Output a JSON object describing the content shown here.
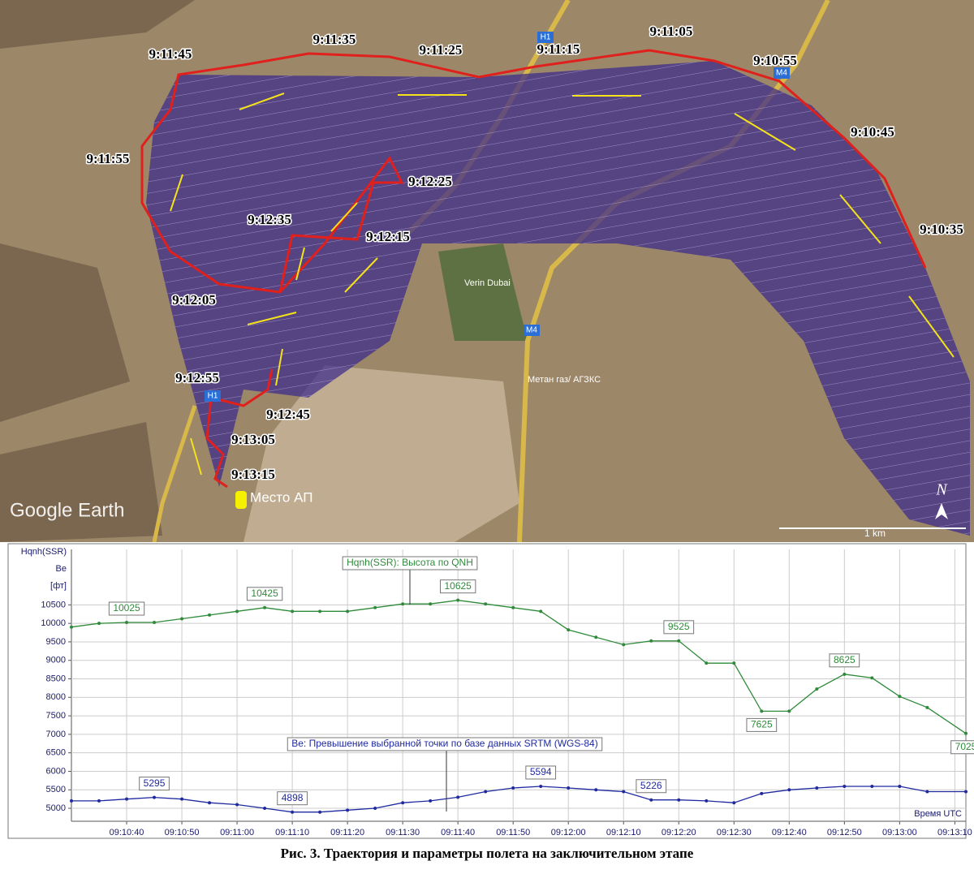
{
  "map": {
    "time_labels": [
      "9:11:45",
      "9:11:35",
      "9:11:25",
      "9:11:15",
      "9:11:05",
      "9:10:55",
      "9:10:45",
      "9:10:35",
      "9:11:55",
      "9:12:25",
      "9:12:35",
      "9:12:15",
      "9:12:05",
      "9:12:55",
      "9:12:45",
      "9:13:05",
      "9:13:15"
    ],
    "place_label": "Место АП",
    "road_labels": [
      "H1",
      "M4",
      "M4",
      "H1"
    ],
    "poi_labels": [
      "Verin Dubai",
      "Метан газ/ АГЗКС"
    ],
    "brand": "Google Earth",
    "scale": "1 km",
    "north": "N"
  },
  "chart_data": {
    "type": "line",
    "y_labels": [
      "Hqnh(SSR)",
      "Be",
      "[фт]"
    ],
    "xlabel": "Время UTC",
    "xlim": [
      "09:10:30",
      "09:13:12"
    ],
    "xticks": [
      "09:10:40",
      "09:10:50",
      "09:11:00",
      "09:11:10",
      "09:11:20",
      "09:11:30",
      "09:11:40",
      "09:11:50",
      "09:12:00",
      "09:12:10",
      "09:12:20",
      "09:12:30",
      "09:12:40",
      "09:12:50",
      "09:13:00",
      "09:13:10"
    ],
    "ylim": [
      4650,
      12000
    ],
    "yticks": [
      5000,
      5500,
      6000,
      6500,
      7000,
      7500,
      8000,
      8500,
      9000,
      9500,
      10000,
      10500
    ],
    "grid": true,
    "x": [
      "09:10:30",
      "09:10:35",
      "09:10:40",
      "09:10:45",
      "09:10:50",
      "09:10:55",
      "09:11:00",
      "09:11:05",
      "09:11:10",
      "09:11:15",
      "09:11:20",
      "09:11:25",
      "09:11:30",
      "09:11:35",
      "09:11:40",
      "09:11:45",
      "09:11:50",
      "09:11:55",
      "09:12:00",
      "09:12:05",
      "09:12:10",
      "09:12:15",
      "09:12:20",
      "09:12:25",
      "09:12:30",
      "09:12:35",
      "09:12:40",
      "09:12:45",
      "09:12:50",
      "09:12:55",
      "09:13:00",
      "09:13:05",
      "09:13:12"
    ],
    "series": [
      {
        "name": "Hqnh(SSR): Высота по QNH",
        "color": "#2e8b3a",
        "values": [
          9900,
          10000,
          10025,
          10025,
          10125,
          10225,
          10325,
          10425,
          10325,
          10325,
          10325,
          10425,
          10525,
          10525,
          10625,
          10525,
          10425,
          10325,
          9825,
          9625,
          9425,
          9525,
          9525,
          8925,
          8925,
          7625,
          7625,
          8225,
          8625,
          8525,
          8025,
          7725,
          7025
        ],
        "label_indices": [
          2,
          7,
          14,
          22,
          25,
          28,
          32
        ]
      },
      {
        "name": "Be: Превышение выбранной точки по базе данных SRTM (WGS-84)",
        "color": "#1f2aa0",
        "values": [
          5200,
          5200,
          5250,
          5295,
          5250,
          5150,
          5100,
          5000,
          4898,
          4898,
          4950,
          5000,
          5150,
          5200,
          5300,
          5450,
          5550,
          5594,
          5550,
          5500,
          5450,
          5226,
          5226,
          5200,
          5150,
          5400,
          5500,
          5550,
          5594,
          5594,
          5594,
          5450,
          5450
        ],
        "label_indices": [
          3,
          8,
          17,
          21
        ]
      }
    ]
  },
  "caption": "Рис. 3. Траектория и параметры полета на заключительном этапе"
}
